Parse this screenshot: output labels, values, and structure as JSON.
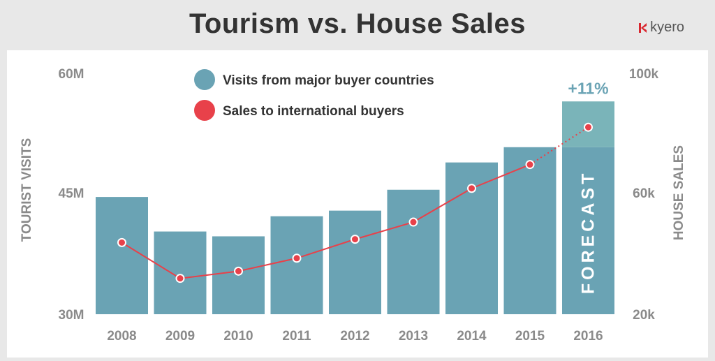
{
  "header": {
    "title": "Tourism vs. House Sales",
    "logo_text": "kyero"
  },
  "chart_data": {
    "type": "bar+line",
    "categories": [
      "2008",
      "2009",
      "2010",
      "2011",
      "2012",
      "2013",
      "2014",
      "2015",
      "2016"
    ],
    "series": [
      {
        "name": "Visits from major buyer countries",
        "type": "bar",
        "axis": "left",
        "color": "#6aa3b4",
        "values": [
          44.6,
          40.3,
          39.7,
          42.2,
          42.9,
          45.5,
          48.9,
          50.8,
          56.5
        ]
      },
      {
        "name": "Sales to international buyers",
        "type": "line",
        "axis": "right",
        "color": "#e8414a",
        "values": [
          43.8,
          31.9,
          34.3,
          38.6,
          44.9,
          50.6,
          61.8,
          69.7,
          82.1
        ]
      }
    ],
    "forecast": {
      "category": "2016",
      "label": "FORECAST",
      "change_label": "+11%",
      "base_value": 50.8,
      "highlight_color": "#7ab4b9"
    },
    "left_axis": {
      "label": "TOURIST VISITS",
      "ylim": [
        30,
        60
      ],
      "ticks": [
        30,
        45,
        60
      ],
      "tick_labels": [
        "30M",
        "45M",
        "60M"
      ]
    },
    "right_axis": {
      "label": "HOUSE SALES",
      "ylim": [
        20,
        100
      ],
      "tick_values": [
        20,
        60,
        100
      ],
      "tick_labels": [
        "20k",
        "60k",
        "100k"
      ]
    },
    "legend_position": "top-center",
    "grid": false
  }
}
